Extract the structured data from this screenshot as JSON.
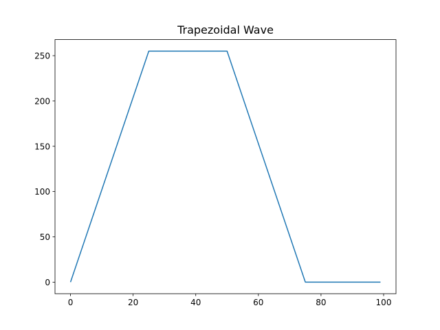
{
  "chart_data": {
    "type": "line",
    "title": "Trapezoidal Wave",
    "xlabel": "",
    "ylabel": "",
    "xlim": [
      -4.95,
      103.95
    ],
    "ylim": [
      -12.75,
      267.75
    ],
    "xticks": [
      0,
      20,
      40,
      60,
      80,
      100
    ],
    "yticks": [
      0,
      50,
      100,
      150,
      200,
      250
    ],
    "grid": false,
    "series": [
      {
        "color": "#1f77b4",
        "x": [
          0,
          25,
          50,
          75,
          99
        ],
        "y": [
          0,
          255,
          255,
          0,
          0
        ]
      }
    ]
  }
}
